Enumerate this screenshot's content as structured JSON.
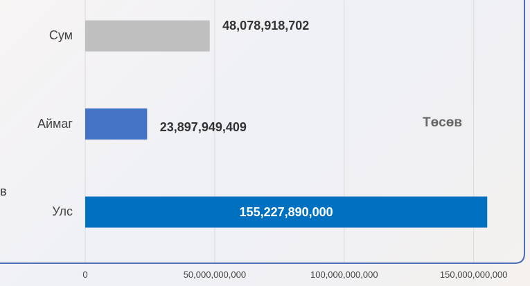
{
  "chart_data": {
    "type": "hbar",
    "categories": [
      "Улс",
      "Аймаг",
      "Сум"
    ],
    "values": [
      155227890000,
      23897949409,
      48078918702
    ],
    "value_labels": [
      "155,227,890,000",
      "23,897,949,409",
      "48,078,918,702"
    ],
    "colors": [
      "#0070c0",
      "#4472c4",
      "#bfbfbf"
    ],
    "xlim": [
      0,
      168000000000
    ],
    "xticks": [
      0,
      {
        "value": 50000000000,
        "label": "50,000,000,000"
      },
      {
        "value": 100000000000,
        "label": "100,000,000,000"
      },
      {
        "value": 150000000000,
        "label": "150,000,000,000"
      }
    ],
    "grid": true,
    "annotation": "Төсөв",
    "side_text": "в"
  }
}
